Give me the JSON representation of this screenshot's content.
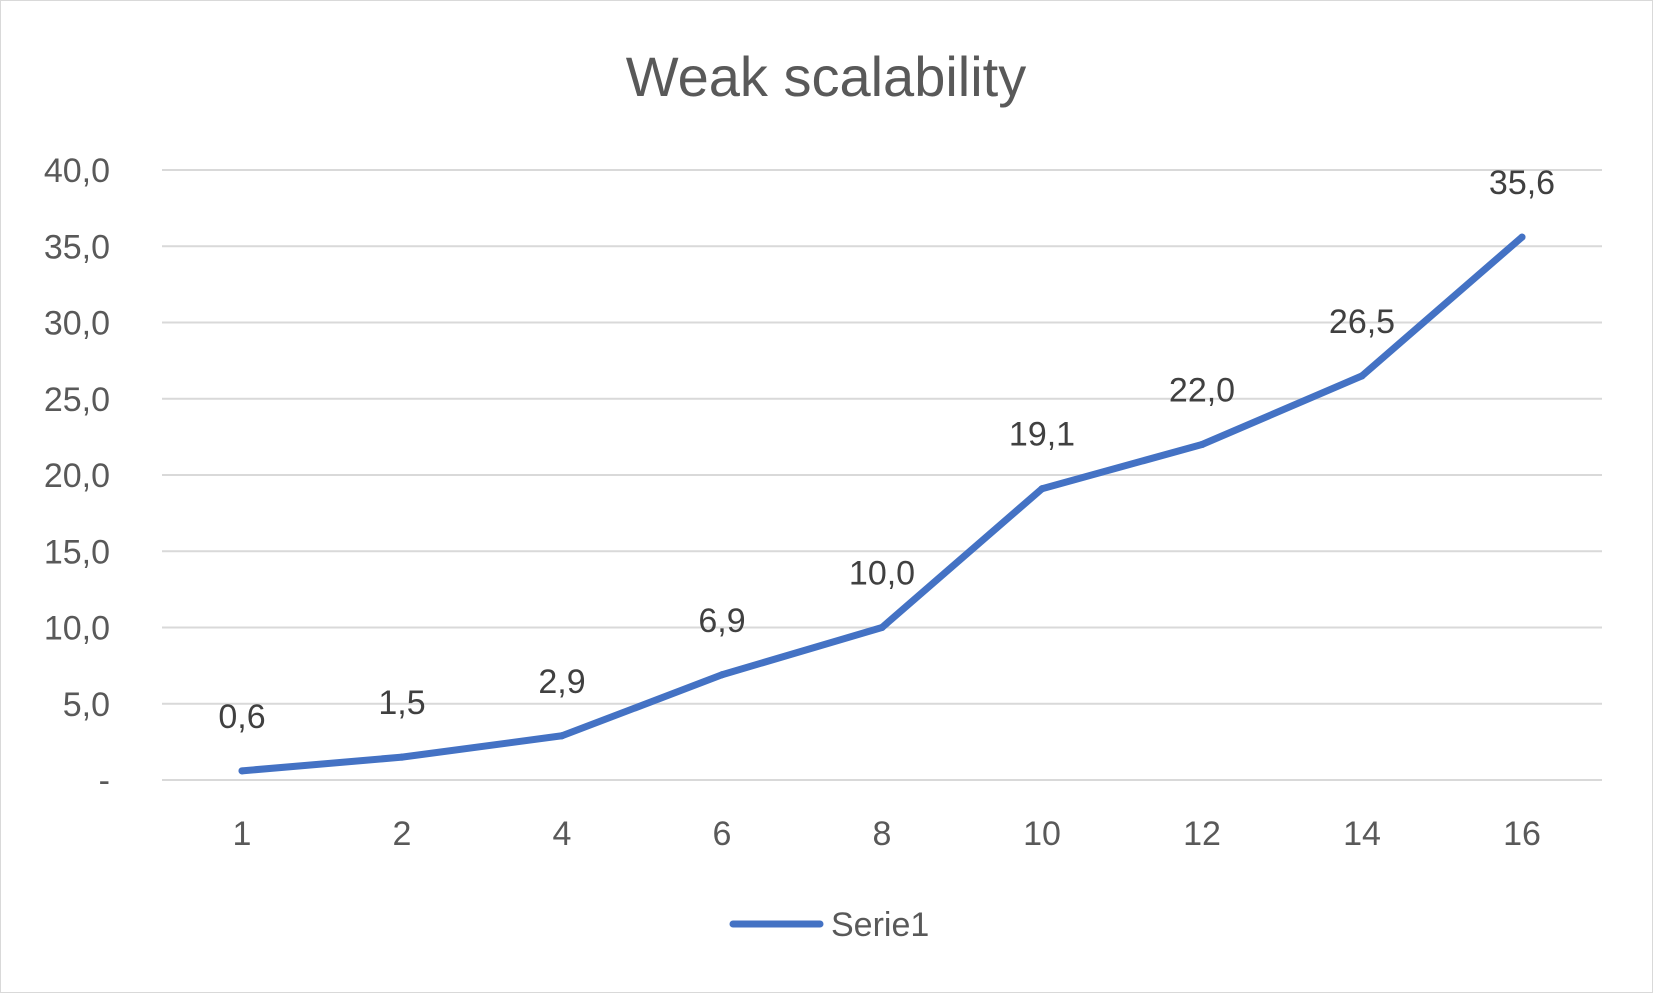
{
  "chart_data": {
    "type": "line",
    "title": "Weak scalability",
    "xlabel": "",
    "ylabel": "",
    "categories": [
      "1",
      "2",
      "4",
      "6",
      "8",
      "10",
      "12",
      "14",
      "16"
    ],
    "series": [
      {
        "name": "Serie1",
        "values": [
          0.6,
          1.5,
          2.9,
          6.9,
          10.0,
          19.1,
          22.0,
          26.5,
          35.6
        ],
        "labels": [
          "0,6",
          "1,5",
          "2,9",
          "6,9",
          "10,0",
          "19,1",
          "22,0",
          "26,5",
          "35,6"
        ],
        "color": "#4472C4"
      }
    ],
    "ylim": [
      0,
      40
    ],
    "y_ticks": [
      "-",
      "5,0",
      "10,0",
      "15,0",
      "20,0",
      "25,0",
      "30,0",
      "35,0",
      "40,0"
    ],
    "grid": true,
    "legend": "bottom",
    "colors": {
      "series": "#4472C4",
      "grid": "#d9d9d9",
      "text": "#595959"
    }
  }
}
